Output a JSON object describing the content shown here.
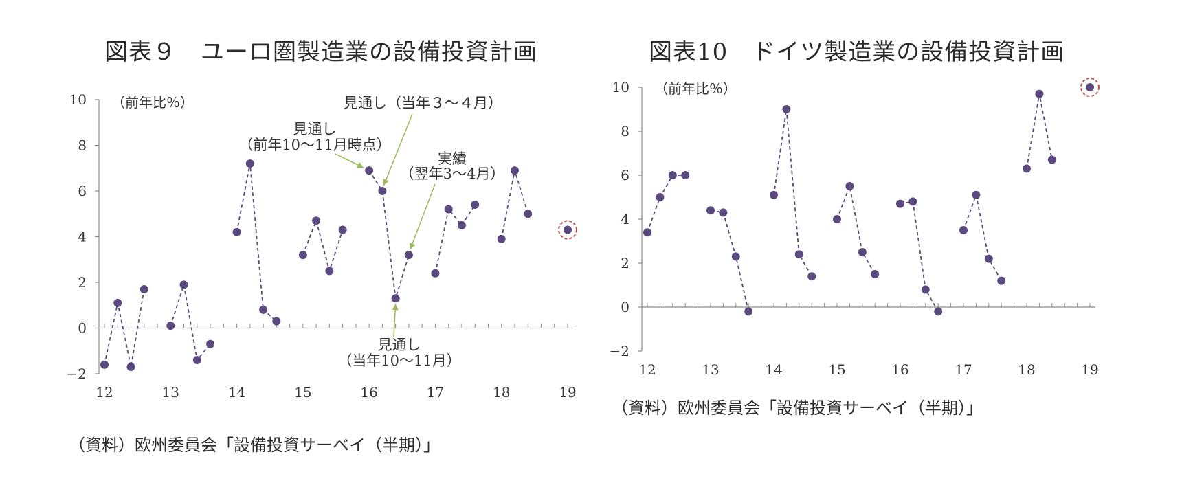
{
  "charts": [
    {
      "title": "図表９　ユーロ圏製造業の設備投資計画",
      "source": "（資料）欧州委員会「設備投資サーベイ（半期）」",
      "unit": "（前年比％）"
    },
    {
      "title": "図表10　ドイツ製造業の設備投資計画",
      "source": "（資料）欧州委員会「設備投資サーベイ（半期）」",
      "unit": "（前年比％）"
    }
  ],
  "chart_data": [
    {
      "type": "line",
      "title": "図表９　ユーロ圏製造業の設備投資計画",
      "ylabel": "（前年比％）",
      "ylim": [
        -2,
        10
      ],
      "yticks": [
        -2,
        0,
        2,
        4,
        6,
        8,
        10
      ],
      "xlim": [
        12,
        19
      ],
      "xticks": [
        12,
        13,
        14,
        15,
        16,
        17,
        18,
        19
      ],
      "series": [
        {
          "x": [
            12.0,
            12.2,
            12.4,
            12.6
          ],
          "y": [
            -1.6,
            1.1,
            -1.7,
            1.7
          ]
        },
        {
          "x": [
            13.0,
            13.2,
            13.4,
            13.6
          ],
          "y": [
            0.1,
            1.9,
            -1.4,
            -0.7
          ]
        },
        {
          "x": [
            14.0,
            14.2,
            14.4,
            14.6
          ],
          "y": [
            4.2,
            7.2,
            0.8,
            0.3
          ]
        },
        {
          "x": [
            15.0,
            15.2,
            15.4,
            15.6
          ],
          "y": [
            3.2,
            4.7,
            2.5,
            4.3
          ]
        },
        {
          "x": [
            16.0,
            16.2,
            16.4,
            16.6
          ],
          "y": [
            6.9,
            6.0,
            1.3,
            3.2
          ]
        },
        {
          "x": [
            17.0,
            17.2,
            17.4,
            17.6
          ],
          "y": [
            2.4,
            5.2,
            4.5,
            5.4
          ]
        },
        {
          "x": [
            18.0,
            18.2,
            18.4
          ],
          "y": [
            3.9,
            6.9,
            5.0
          ]
        },
        {
          "x": [
            19.0
          ],
          "y": [
            4.3
          ]
        }
      ],
      "highlight": {
        "x": 19.0,
        "y": 4.3
      },
      "annotations": [
        {
          "text": "見通し（当年３～４月）"
        },
        {
          "text": "見通し"
        },
        {
          "text": "（前年10～11月時点）"
        },
        {
          "text": "実績"
        },
        {
          "text": "（翌年3～4月）"
        },
        {
          "text": "見通し"
        },
        {
          "text": "（当年10～11月）"
        }
      ],
      "colors": {
        "marker": "#5b4a7f",
        "line": "#5b4a7f",
        "highlight": "#c0504d",
        "arrow": "#9bbb59"
      }
    },
    {
      "type": "line",
      "title": "図表10　ドイツ製造業の設備投資計画",
      "ylabel": "（前年比％）",
      "ylim": [
        -2,
        10
      ],
      "yticks": [
        -2,
        0,
        2,
        4,
        6,
        8,
        10
      ],
      "xlim": [
        12,
        19
      ],
      "xticks": [
        12,
        13,
        14,
        15,
        16,
        17,
        18,
        19
      ],
      "series": [
        {
          "x": [
            12.0,
            12.2,
            12.4,
            12.6
          ],
          "y": [
            3.4,
            5.0,
            6.0,
            6.0
          ]
        },
        {
          "x": [
            13.0,
            13.2,
            13.4,
            13.6
          ],
          "y": [
            4.4,
            4.3,
            2.3,
            -0.2
          ]
        },
        {
          "x": [
            14.0,
            14.2,
            14.4,
            14.6
          ],
          "y": [
            5.1,
            9.0,
            2.4,
            1.4
          ]
        },
        {
          "x": [
            15.0,
            15.2,
            15.4,
            15.6
          ],
          "y": [
            4.0,
            5.5,
            2.5,
            1.5
          ]
        },
        {
          "x": [
            16.0,
            16.2,
            16.4,
            16.6
          ],
          "y": [
            4.7,
            4.8,
            0.8,
            -0.2
          ]
        },
        {
          "x": [
            17.0,
            17.2,
            17.4,
            17.6
          ],
          "y": [
            3.5,
            5.1,
            2.2,
            1.2
          ]
        },
        {
          "x": [
            18.0,
            18.2,
            18.4
          ],
          "y": [
            6.3,
            9.7,
            6.7
          ]
        },
        {
          "x": [
            19.0
          ],
          "y": [
            10.0
          ]
        }
      ],
      "highlight": {
        "x": 19.0,
        "y": 10.0
      },
      "colors": {
        "marker": "#5b4a7f",
        "line": "#5b4a7f",
        "highlight": "#c0504d"
      }
    }
  ]
}
